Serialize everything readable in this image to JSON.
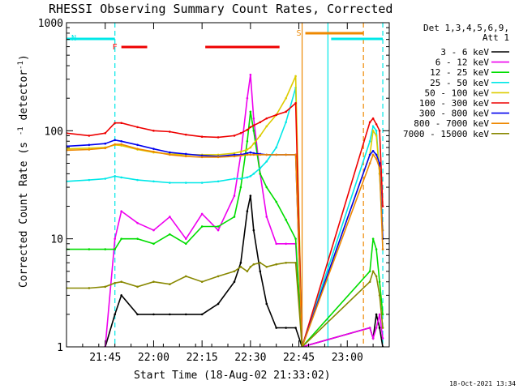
{
  "chart_data": {
    "type": "line",
    "title": "RHESSI Observing Summary Count Rates, Corrected",
    "xlabel": "Start Time (18-Aug-02 21:33:02)",
    "ylabel": "Corrected Count Rate (s^-1 detector^-1)",
    "y_scale": "log",
    "ylim": [
      1,
      1000
    ],
    "xlim": [
      "21:33",
      "23:13"
    ],
    "x_ticks": [
      "21:45",
      "22:00",
      "22:15",
      "22:30",
      "22:45",
      "23:00"
    ],
    "y_ticks": [
      "1",
      "10",
      "100",
      "1000"
    ],
    "legend_position": "right",
    "legend_header": [
      "Det 1,3,4,5,6,9,",
      "Att 1"
    ],
    "footer_date": "18-Oct-2021 13:34",
    "markers": [
      {
        "label": "F",
        "start": "21:50",
        "end": "21:58",
        "color": "#ee0000"
      },
      {
        "label": "",
        "start": "22:16",
        "end": "22:39",
        "color": "#ee0000"
      },
      {
        "label": "N",
        "start": "21:33",
        "end": "21:48",
        "color": "#00e8e8"
      },
      {
        "label": "",
        "start": "22:55",
        "end": "23:11",
        "color": "#00e8e8"
      },
      {
        "label": "S",
        "start": "22:47",
        "end": "23:05",
        "color": "#ee8800"
      }
    ],
    "vertical_lines": [
      {
        "time": "21:48",
        "color": "#00e8e8",
        "style": "dashed"
      },
      {
        "time": "22:54",
        "color": "#00e8e8",
        "style": "solid"
      },
      {
        "time": "23:11",
        "color": "#00e8e8",
        "style": "dashed"
      },
      {
        "time": "22:46",
        "color": "#ee8800",
        "style": "solid"
      },
      {
        "time": "23:05",
        "color": "#ee8800",
        "style": "dashed"
      }
    ],
    "x": [
      "21:33",
      "21:40",
      "21:45",
      "21:48",
      "21:50",
      "21:55",
      "22:00",
      "22:05",
      "22:10",
      "22:15",
      "22:20",
      "22:25",
      "22:27",
      "22:29",
      "22:30",
      "22:31",
      "22:33",
      "22:35",
      "22:38",
      "22:41",
      "22:44",
      "22:46",
      "23:07",
      "23:08",
      "23:09",
      "23:10",
      "23:11"
    ],
    "series": [
      {
        "name": "3 - 6 keV",
        "color": "#000000",
        "values": [
          null,
          null,
          1,
          2,
          3,
          2,
          2,
          2,
          2,
          2,
          2.5,
          4,
          6,
          18,
          25,
          12,
          5,
          2.5,
          1.5,
          1.5,
          1.5,
          1,
          1.5,
          1.2,
          2,
          1.5,
          1
        ]
      },
      {
        "name": "6 - 12 keV",
        "color": "#ee00ee",
        "values": [
          null,
          null,
          1,
          10,
          18,
          14,
          12,
          16,
          10,
          17,
          12,
          25,
          60,
          200,
          330,
          130,
          40,
          16,
          9,
          9,
          9,
          1,
          1.5,
          1.2,
          1.5,
          2,
          1.2
        ]
      },
      {
        "name": "12 - 25 keV",
        "color": "#00dd00",
        "values": [
          8,
          8,
          8,
          8,
          10,
          10,
          9,
          11,
          9,
          13,
          13,
          16,
          30,
          80,
          150,
          100,
          40,
          30,
          22,
          15,
          10,
          1,
          5,
          10,
          8,
          4,
          2
        ]
      },
      {
        "name": "25 - 50 keV",
        "color": "#00e8e8",
        "values": [
          34,
          35,
          36,
          38,
          37,
          35,
          34,
          33,
          33,
          33,
          34,
          36,
          36,
          37,
          38,
          40,
          45,
          52,
          70,
          120,
          250,
          1,
          80,
          110,
          100,
          40,
          10
        ]
      },
      {
        "name": "50 - 100 keV",
        "color": "#ddcc00",
        "values": [
          68,
          69,
          70,
          74,
          73,
          67,
          63,
          61,
          60,
          60,
          60,
          62,
          64,
          67,
          70,
          76,
          90,
          110,
          140,
          200,
          320,
          1,
          60,
          100,
          90,
          40,
          12
        ]
      },
      {
        "name": "100 - 300 keV",
        "color": "#ee0000",
        "values": [
          95,
          90,
          95,
          118,
          118,
          108,
          100,
          98,
          92,
          88,
          87,
          90,
          95,
          102,
          108,
          112,
          120,
          130,
          140,
          150,
          180,
          1,
          120,
          130,
          115,
          100,
          20
        ]
      },
      {
        "name": "300 - 800 keV",
        "color": "#0000ee",
        "values": [
          72,
          74,
          76,
          82,
          80,
          74,
          68,
          63,
          61,
          59,
          58,
          60,
          60,
          62,
          63,
          62,
          61,
          60,
          60,
          60,
          60,
          1,
          60,
          65,
          60,
          50,
          10
        ]
      },
      {
        "name": "800 - 7000 keV",
        "color": "#ee8800",
        "values": [
          66,
          67,
          69,
          75,
          75,
          68,
          64,
          60,
          58,
          57,
          57,
          58,
          59,
          60,
          60,
          60,
          60,
          60,
          60,
          60,
          60,
          1,
          50,
          60,
          55,
          45,
          8
        ]
      },
      {
        "name": "7000 - 15000 keV",
        "color": "#888800",
        "values": [
          3.5,
          3.5,
          3.6,
          3.9,
          4,
          3.6,
          4,
          3.8,
          4.5,
          4,
          4.5,
          5,
          5.5,
          5,
          5.5,
          5.8,
          6,
          5.5,
          5.8,
          6,
          6,
          1,
          4,
          5,
          4.5,
          3,
          1.5
        ]
      }
    ]
  }
}
